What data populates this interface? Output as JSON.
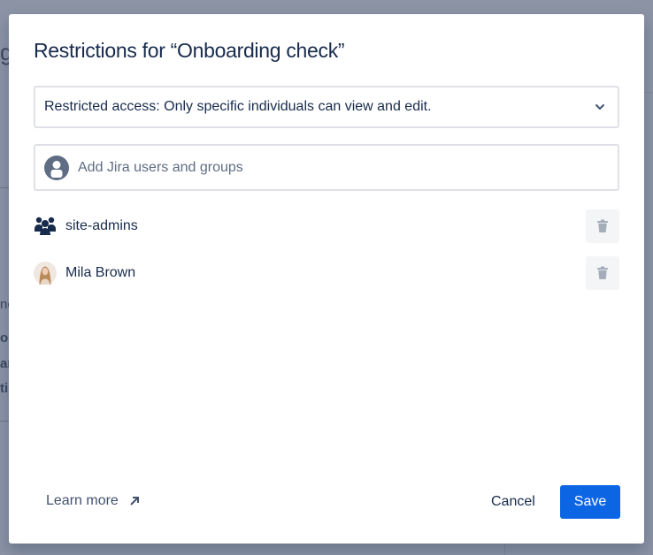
{
  "background": {
    "fragments": [
      "g",
      "nc",
      "or",
      "ar",
      "ti"
    ]
  },
  "dialog": {
    "title": "Restrictions for “Onboarding check”",
    "access_select": {
      "value": "Restricted access: Only specific individuals can view and edit.",
      "icon": "chevron-down-icon"
    },
    "add_input": {
      "placeholder": "Add Jira users and groups",
      "icon": "user-avatar-icon"
    },
    "entries": [
      {
        "name": "site-admins",
        "type": "group",
        "icon": "group-icon"
      },
      {
        "name": "Mila Brown",
        "type": "user",
        "icon": "user-photo-avatar"
      }
    ],
    "learn_more": "Learn more",
    "cancel": "Cancel",
    "save": "Save"
  },
  "colors": {
    "primary": "#0c66e4",
    "text": "#172b4d",
    "overlay": "#8b93a5"
  }
}
